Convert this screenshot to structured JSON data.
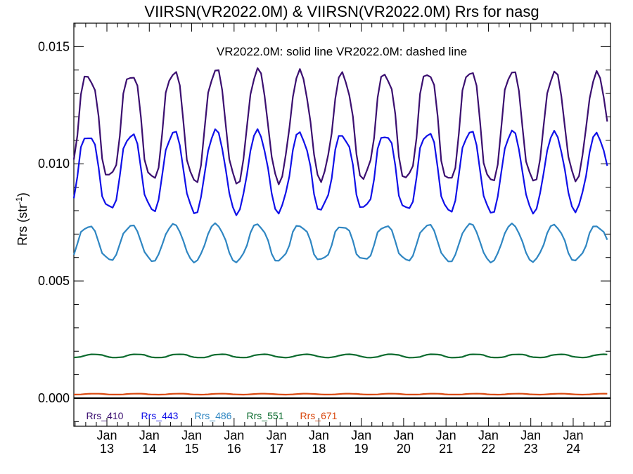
{
  "chart_data": {
    "type": "line",
    "title": "VIIRSN(VR2022.0M) & VIIRSN(VR2022.0M)  Rrs for nasg",
    "annotation": "VR2022.0M: solid line   VR2022.0M: dashed line",
    "ylabel": "Rrs (str",
    "ylabel_sup": "-1",
    "ylabel_close": ")",
    "ylim": [
      -0.0012,
      0.016
    ],
    "yticks": [
      {
        "value": 0.0,
        "label": "0.000"
      },
      {
        "value": 0.005,
        "label": "0.005"
      },
      {
        "value": 0.01,
        "label": "0.010"
      },
      {
        "value": 0.015,
        "label": "0.015"
      }
    ],
    "xlim": [
      2012.22,
      2024.88
    ],
    "xticks": [
      {
        "value": 2013.0,
        "month": "Jan",
        "year": "13"
      },
      {
        "value": 2014.0,
        "month": "Jan",
        "year": "14"
      },
      {
        "value": 2015.0,
        "month": "Jan",
        "year": "15"
      },
      {
        "value": 2016.0,
        "month": "Jan",
        "year": "16"
      },
      {
        "value": 2017.0,
        "month": "Jan",
        "year": "17"
      },
      {
        "value": 2018.0,
        "month": "Jan",
        "year": "18"
      },
      {
        "value": 2019.0,
        "month": "Jan",
        "year": "19"
      },
      {
        "value": 2020.0,
        "month": "Jan",
        "year": "20"
      },
      {
        "value": 2021.0,
        "month": "Jan",
        "year": "21"
      },
      {
        "value": 2022.0,
        "month": "Jan",
        "year": "22"
      },
      {
        "value": 2023.0,
        "month": "Jan",
        "year": "23"
      },
      {
        "value": 2024.0,
        "month": "Jan",
        "year": "24"
      }
    ],
    "zero_line": true,
    "series": [
      {
        "name": "Rrs_410",
        "color": "#3b0f70",
        "baseline": 0.0116,
        "amplitude": 0.0023,
        "phase": 0.06
      },
      {
        "name": "Rrs_443",
        "color": "#1010e8",
        "baseline": 0.00965,
        "amplitude": 0.00165,
        "phase": 0.06
      },
      {
        "name": "Rrs_486",
        "color": "#2f86c2",
        "baseline": 0.00662,
        "amplitude": 0.00075,
        "phase": 0.06
      },
      {
        "name": "Rrs_551",
        "color": "#0b6b2e",
        "baseline": 0.0018,
        "amplitude": 7e-05,
        "phase": 0.2
      },
      {
        "name": "Rrs_671",
        "color": "#d9480f",
        "baseline": 0.00017,
        "amplitude": 2e-05,
        "phase": 0.2
      }
    ]
  }
}
